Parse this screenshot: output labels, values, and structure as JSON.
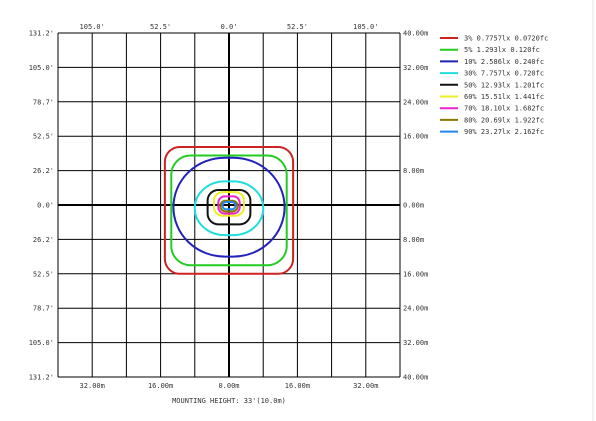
{
  "chart_data": {
    "type": "contour",
    "title": "",
    "xlabel": "MOUNTING HEIGHT: 33'(10.0m)",
    "grid": true,
    "axes": {
      "top_ticks": [
        "105.0'",
        "52.5'",
        "0.0'",
        "52.5'",
        "105.0'"
      ],
      "bottom_ticks": [
        "32.00m",
        "16.00m",
        "0.00m",
        "16.00m",
        "32.00m"
      ],
      "left_ticks": [
        "131.2'",
        "105.0'",
        "78.7'",
        "52.5'",
        "26.2'",
        "0.0'",
        "26.2'",
        "52.5'",
        "78.7'",
        "105.0'",
        "131.2'"
      ],
      "right_ticks": [
        "40.00m",
        "32.00m",
        "24.00m",
        "16.00m",
        "8.00m",
        "0.00m",
        "8.00m",
        "16.00m",
        "24.00m",
        "32.00m",
        "40.00m"
      ],
      "x_range_m": [
        -40,
        40
      ],
      "y_range_m": [
        -40,
        40
      ]
    },
    "legend": {
      "placement": "right",
      "entries": [
        {
          "label": "3% 0.7757lx 0.0720fc",
          "color": "#cc2222"
        },
        {
          "label": "5% 1.293lx 0.120fc",
          "color": "#22cc22"
        },
        {
          "label": "10% 2.586lx 0.240fc",
          "color": "#2222bb"
        },
        {
          "label": "30% 7.757lx 0.720fc",
          "color": "#22dddd"
        },
        {
          "label": "50% 12.93lx 1.201fc",
          "color": "#111111"
        },
        {
          "label": "60% 15.51lx 1.441fc",
          "color": "#eeee22"
        },
        {
          "label": "70% 18.10lx 1.682fc",
          "color": "#ee22cc"
        },
        {
          "label": "80% 20.69lx 1.922fc",
          "color": "#887700"
        },
        {
          "label": "90% 23.27lx 2.162fc",
          "color": "#2288ee"
        }
      ]
    },
    "series": [
      {
        "level": "3%",
        "color": "#cc2222",
        "x_half_m": 15.0,
        "y_top_m": 13.5,
        "y_bottom_m": -16.0,
        "rx_m": 3.5
      },
      {
        "level": "5%",
        "color": "#22cc22",
        "x_half_m": 13.5,
        "y_top_m": 11.5,
        "y_bottom_m": -14.0,
        "rx_m": 4.5
      },
      {
        "level": "10%",
        "color": "#2222bb",
        "x_half_m": 13.0,
        "y_top_m": 11.0,
        "y_bottom_m": -12.0,
        "rx_m": 12.0
      },
      {
        "level": "30%",
        "color": "#22dddd",
        "x_half_m": 8.0,
        "y_top_m": 5.5,
        "y_bottom_m": -7.0,
        "rx_m": 7.0
      },
      {
        "level": "50%",
        "color": "#111111",
        "x_half_m": 5.0,
        "y_top_m": 3.5,
        "y_bottom_m": -4.5,
        "rx_m": 2.5
      },
      {
        "level": "60%",
        "color": "#eeee22",
        "x_half_m": 3.5,
        "y_top_m": 3.0,
        "y_bottom_m": -2.5,
        "rx_m": 2.0
      },
      {
        "level": "70%",
        "color": "#ee22cc",
        "x_half_m": 2.5,
        "y_top_m": 2.0,
        "y_bottom_m": -2.0,
        "rx_m": 1.5
      },
      {
        "level": "80%",
        "color": "#887700",
        "x_half_m": 2.0,
        "y_top_m": 1.0,
        "y_bottom_m": -1.5,
        "rx_m": 1.2
      },
      {
        "level": "90%",
        "color": "#2288ee",
        "x_half_m": 1.5,
        "y_top_m": 0.7,
        "y_bottom_m": -1.0,
        "rx_m": 0.8
      }
    ]
  }
}
